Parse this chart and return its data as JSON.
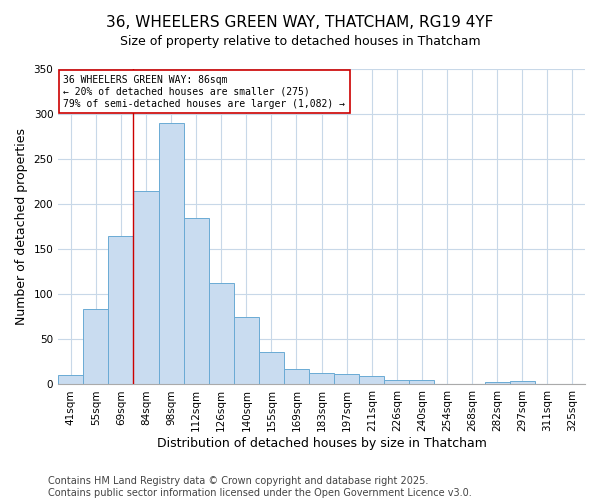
{
  "title": "36, WHEELERS GREEN WAY, THATCHAM, RG19 4YF",
  "subtitle": "Size of property relative to detached houses in Thatcham",
  "xlabel": "Distribution of detached houses by size in Thatcham",
  "ylabel": "Number of detached properties",
  "categories": [
    "41sqm",
    "55sqm",
    "69sqm",
    "84sqm",
    "98sqm",
    "112sqm",
    "126sqm",
    "140sqm",
    "155sqm",
    "169sqm",
    "183sqm",
    "197sqm",
    "211sqm",
    "226sqm",
    "240sqm",
    "254sqm",
    "268sqm",
    "282sqm",
    "297sqm",
    "311sqm",
    "325sqm"
  ],
  "bar_heights": [
    10,
    84,
    165,
    215,
    290,
    185,
    113,
    75,
    36,
    17,
    13,
    12,
    9,
    5,
    5,
    1,
    0,
    3,
    4,
    0,
    0
  ],
  "bar_color": "#c9dcf0",
  "bar_edge_color": "#6aaad4",
  "annotation_text": "36 WHEELERS GREEN WAY: 86sqm\n← 20% of detached houses are smaller (275)\n79% of semi-detached houses are larger (1,082) →",
  "annotation_box_color": "#ffffff",
  "annotation_box_edge_color": "#cc0000",
  "red_line_index": 3,
  "ylim": [
    0,
    350
  ],
  "yticks": [
    0,
    50,
    100,
    150,
    200,
    250,
    300,
    350
  ],
  "title_fontsize": 11,
  "axis_label_fontsize": 9,
  "tick_fontsize": 7.5,
  "annotation_fontsize": 7,
  "footer_text": "Contains HM Land Registry data © Crown copyright and database right 2025.\nContains public sector information licensed under the Open Government Licence v3.0.",
  "footer_fontsize": 7,
  "background_color": "#ffffff",
  "grid_color": "#c8d8e8"
}
